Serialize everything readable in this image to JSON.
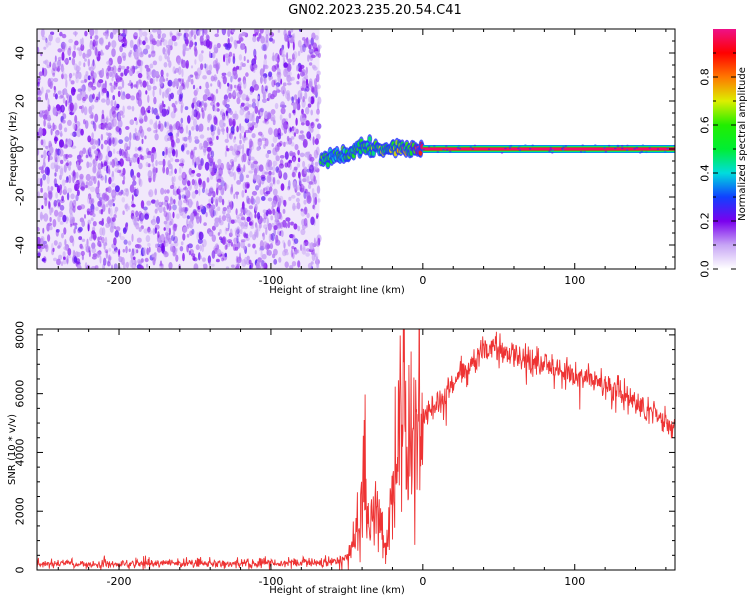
{
  "title": "GN02.2023.235.20.54.C41",
  "chart_data": [
    {
      "type": "heatmap",
      "xlabel": "Height of straight line (km)",
      "ylabel": "Frequency (Hz)",
      "xlim": [
        -254,
        166
      ],
      "ylim": [
        -50,
        50
      ],
      "x_ticks": [
        -200,
        -100,
        0,
        100
      ],
      "y_ticks": [
        -40,
        -20,
        0,
        20,
        40
      ],
      "colorbar": {
        "label": "Normalized spectral amplitude",
        "range": [
          0,
          1
        ],
        "ticks": [
          0.0,
          0.2,
          0.4,
          0.6,
          0.8
        ]
      },
      "noise_region": {
        "x_range": [
          -254,
          -68
        ],
        "amplitude": 0.1
      },
      "signal_trace": [
        {
          "x": -67,
          "freq": -4.5,
          "amplitude": 0.55
        },
        {
          "x": -60,
          "freq": -3.0,
          "amplitude": 0.5
        },
        {
          "x": -50,
          "freq": -2.5,
          "amplitude": 0.55
        },
        {
          "x": -40,
          "freq": 0.5,
          "amplitude": 0.5
        },
        {
          "x": -30,
          "freq": 0.0,
          "amplitude": 0.6
        },
        {
          "x": -20,
          "freq": 0.5,
          "amplitude": 0.6
        },
        {
          "x": -10,
          "freq": 0.0,
          "amplitude": 0.7
        },
        {
          "x": 0,
          "freq": 0.0,
          "amplitude": 1.0
        },
        {
          "x": 100,
          "freq": 0.0,
          "amplitude": 1.0
        },
        {
          "x": 166,
          "freq": 0.0,
          "amplitude": 1.0
        }
      ]
    },
    {
      "type": "line",
      "xlabel": "Height of straight line (km)",
      "ylabel": "SNR (10 * v/v)",
      "xlim": [
        -254,
        166
      ],
      "ylim": [
        0,
        8200
      ],
      "x_ticks": [
        -200,
        -100,
        0,
        100
      ],
      "y_ticks": [
        0,
        2000,
        4000,
        6000,
        8000
      ],
      "series": [
        {
          "color": "#ee3333",
          "x": [
            -254,
            -200,
            -150,
            -100,
            -60,
            -50,
            -45,
            -40,
            -35,
            -30,
            -25,
            -20,
            -15,
            -10,
            -5,
            0,
            10,
            20,
            30,
            40,
            50,
            60,
            70,
            80,
            90,
            100,
            110,
            120,
            130,
            140,
            150,
            160,
            166
          ],
          "y": [
            200,
            200,
            220,
            220,
            250,
            400,
            1100,
            2400,
            1400,
            2300,
            700,
            2500,
            5000,
            4300,
            5200,
            5000,
            5700,
            6300,
            6900,
            7500,
            7500,
            7300,
            7100,
            7000,
            6800,
            6700,
            6500,
            6300,
            6000,
            5700,
            5400,
            5000,
            4800
          ]
        }
      ]
    }
  ]
}
